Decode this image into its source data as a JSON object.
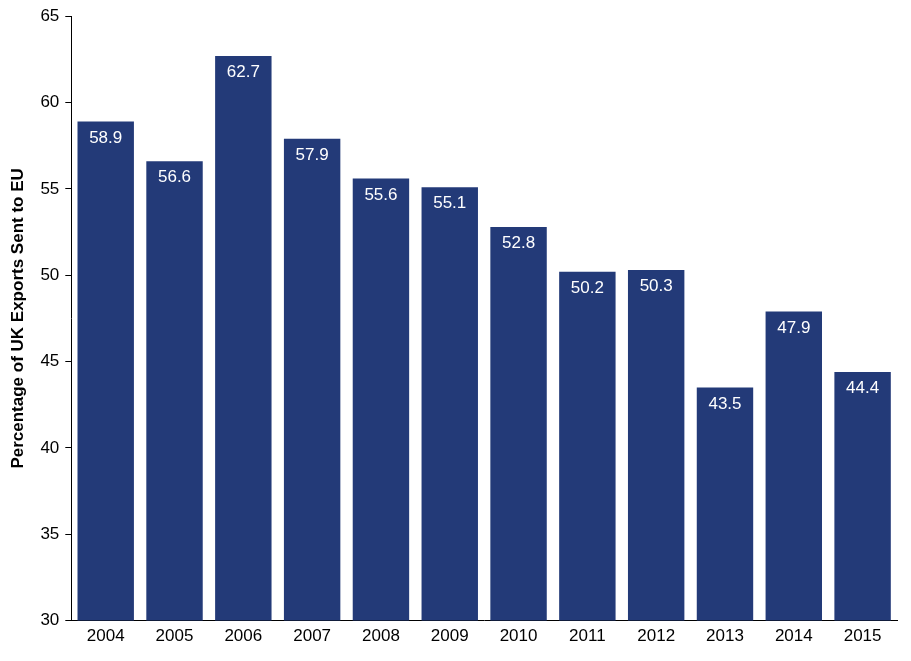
{
  "chart_data": {
    "type": "bar",
    "y_label": "Percentage of UK Exports Sent to EU",
    "categories": [
      "2004",
      "2005",
      "2006",
      "2007",
      "2008",
      "2009",
      "2010",
      "2011",
      "2012",
      "2013",
      "2014",
      "2015"
    ],
    "values": [
      58.9,
      56.6,
      62.7,
      57.9,
      55.6,
      55.1,
      52.8,
      50.2,
      50.3,
      43.5,
      47.9,
      44.4
    ],
    "color": "#233a78",
    "ylim": [
      30,
      65
    ],
    "yticks": [
      30,
      35,
      40,
      45,
      50,
      55,
      60,
      65
    ],
    "grid": false,
    "data_labels": true
  }
}
